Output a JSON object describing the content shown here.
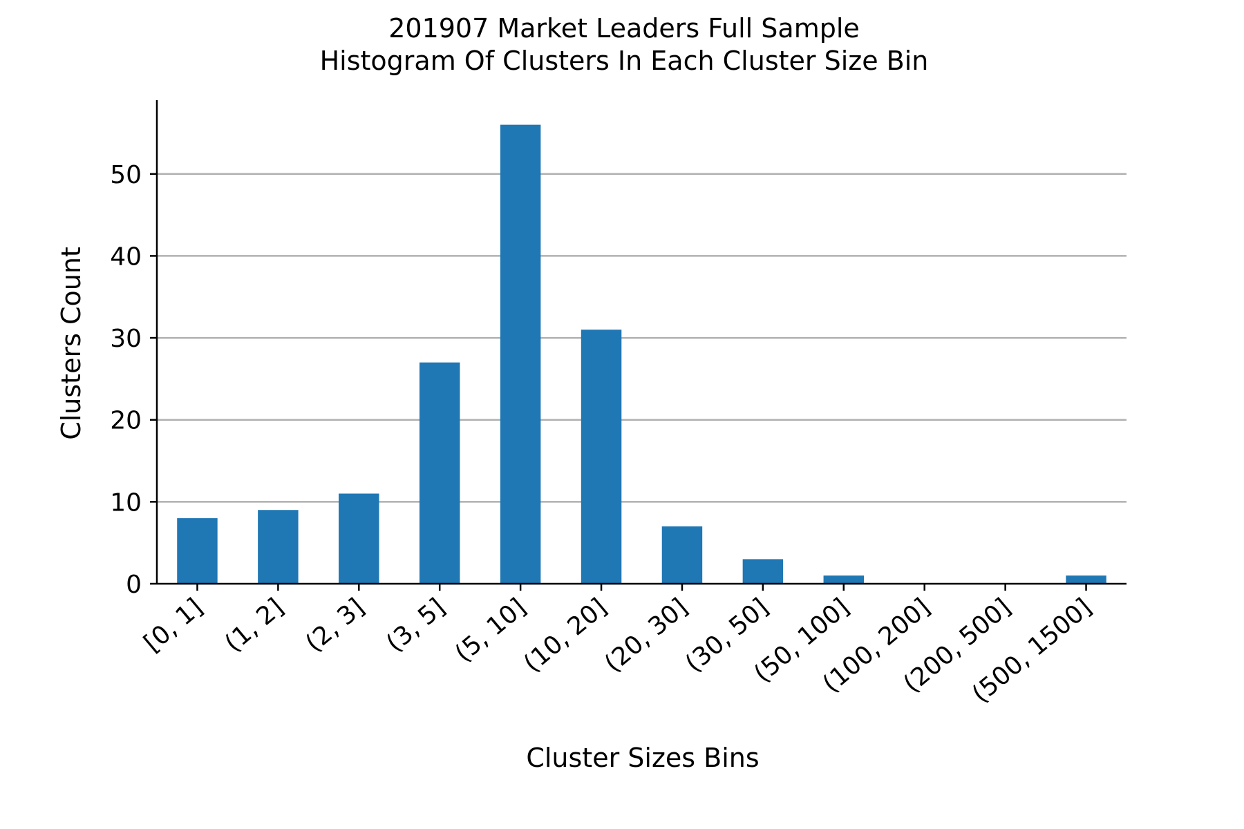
{
  "chart_data": {
    "type": "bar",
    "title": "201907 Market Leaders Full Sample",
    "subtitle": "Histogram Of Clusters In Each Cluster Size Bin",
    "xlabel": "Cluster Sizes Bins",
    "ylabel": "Clusters Count",
    "categories": [
      "[0, 1]",
      "(1, 2]",
      "(2, 3]",
      "(3, 5]",
      "(5, 10]",
      "(10, 20]",
      "(20, 30]",
      "(30, 50]",
      "(50, 100]",
      "(100, 200]",
      "(200, 500]",
      "(500, 1500]"
    ],
    "values": [
      8,
      9,
      11,
      27,
      56,
      31,
      7,
      3,
      1,
      0,
      0,
      1
    ],
    "ylim": [
      0,
      59
    ],
    "yticks": [
      0,
      10,
      20,
      30,
      40,
      50
    ],
    "grid": "horizontal",
    "legend": "none",
    "bar_color": "#1f77b4",
    "grid_color": "#b0b0b0"
  }
}
